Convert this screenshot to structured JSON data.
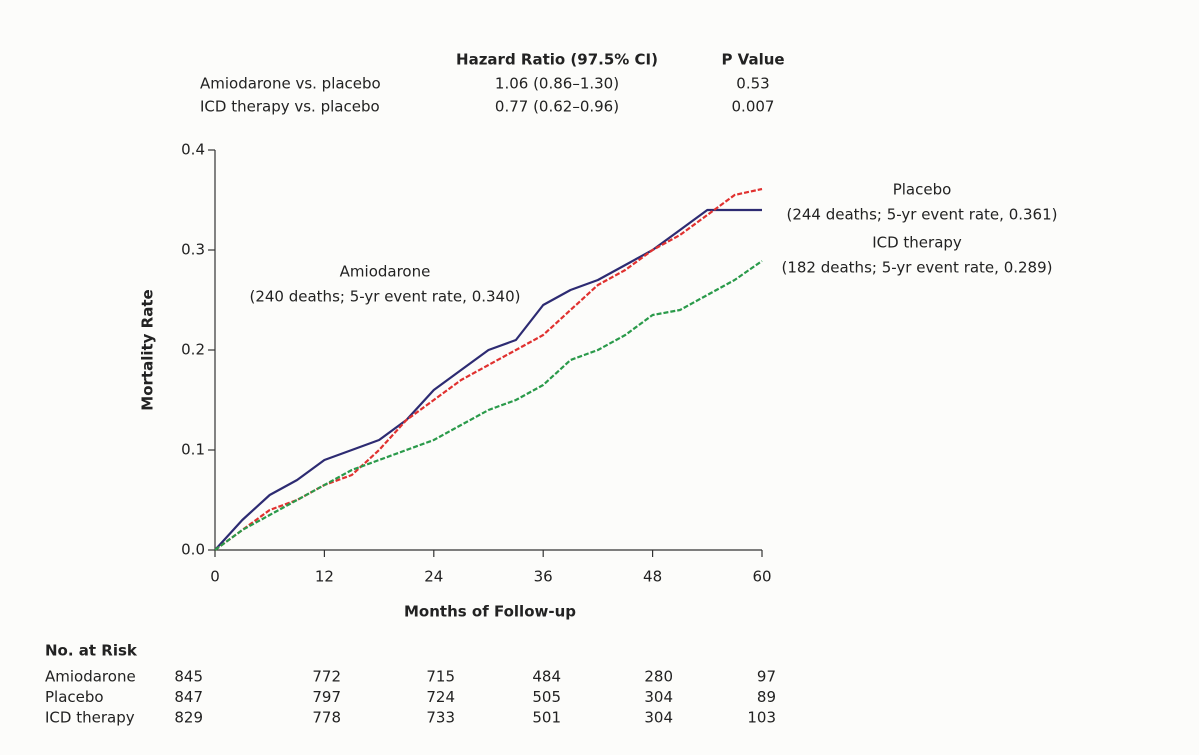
{
  "chart_data": {
    "type": "line",
    "xlabel": "Months of Follow-up",
    "ylabel": "Mortality Rate",
    "x": [
      0,
      3,
      6,
      9,
      12,
      15,
      18,
      21,
      24,
      27,
      30,
      33,
      36,
      39,
      42,
      45,
      48,
      51,
      54,
      57,
      60
    ],
    "series": [
      {
        "name": "Amiodarone",
        "color": "#2d2b72",
        "line_style": "solid",
        "values": [
          0,
          0.03,
          0.055,
          0.07,
          0.09,
          0.1,
          0.11,
          0.13,
          0.16,
          0.18,
          0.2,
          0.21,
          0.245,
          0.26,
          0.27,
          0.285,
          0.3,
          0.32,
          0.34,
          0.34,
          0.34
        ]
      },
      {
        "name": "Placebo",
        "color": "#e0312f",
        "line_style": "dashed",
        "values": [
          0,
          0.02,
          0.04,
          0.05,
          0.065,
          0.075,
          0.1,
          0.13,
          0.15,
          0.17,
          0.185,
          0.2,
          0.215,
          0.24,
          0.265,
          0.28,
          0.3,
          0.315,
          0.335,
          0.355,
          0.361
        ]
      },
      {
        "name": "ICD therapy",
        "color": "#2a9a4a",
        "line_style": "dashed",
        "values": [
          0,
          0.02,
          0.035,
          0.05,
          0.065,
          0.08,
          0.09,
          0.1,
          0.11,
          0.125,
          0.14,
          0.15,
          0.165,
          0.19,
          0.2,
          0.215,
          0.235,
          0.24,
          0.255,
          0.27,
          0.289
        ]
      }
    ],
    "annotations": [
      [
        "Amiodarone",
        "(240 deaths; 5-yr event rate, 0.340)"
      ],
      [
        "Placebo",
        "(244 deaths; 5-yr event rate, 0.361)"
      ],
      [
        "ICD therapy",
        "(182 deaths; 5-yr event rate, 0.289)"
      ]
    ],
    "xlim": [
      0,
      60
    ],
    "xticks": [
      0,
      12,
      24,
      36,
      48,
      60
    ],
    "ylim": [
      0,
      0.4
    ],
    "yticks": [
      {
        "value": 0,
        "label": "0.0"
      },
      0.1,
      0.2,
      0.3,
      0.4
    ],
    "grid": false,
    "hazard_table": {
      "columns": [
        "Hazard Ratio (97.5% CI)",
        "P Value"
      ],
      "rows": [
        [
          "Amiodarone vs. placebo",
          "1.06 (0.86–1.30)",
          "0.53"
        ],
        [
          "ICD therapy vs. placebo",
          "0.77 (0.62–0.96)",
          "0.007"
        ]
      ]
    },
    "risk_table": {
      "title": "No. at Risk",
      "rows": [
        {
          "name": "Amiodarone",
          "values": [
            845,
            772,
            715,
            484,
            280,
            97
          ]
        },
        {
          "name": "Placebo",
          "values": [
            847,
            797,
            724,
            505,
            304,
            89
          ]
        },
        {
          "name": "ICD therapy",
          "values": [
            829,
            778,
            733,
            501,
            304,
            103
          ]
        }
      ]
    }
  }
}
